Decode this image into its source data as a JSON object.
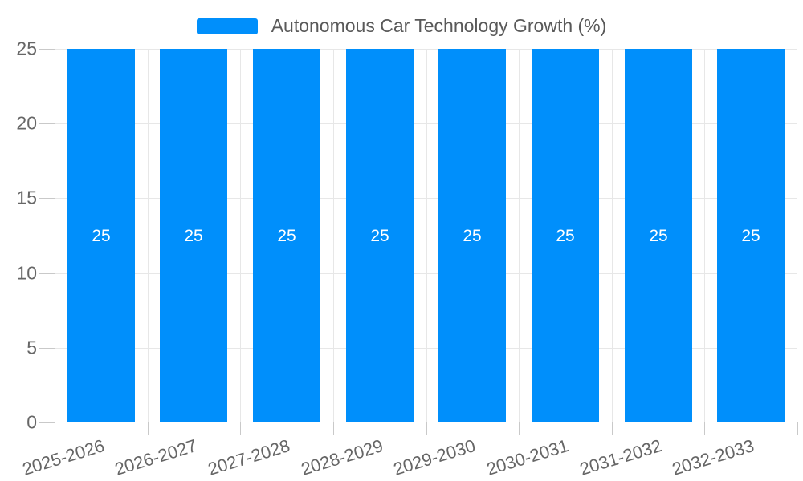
{
  "page": {
    "background": "#ffffff"
  },
  "legend": {
    "label": "Autonomous Car Technology Growth (%)"
  },
  "chart_data": {
    "type": "bar",
    "title": "Autonomous Car Technology Growth (%)",
    "categories": [
      "2025-2026",
      "2026-2027",
      "2027-2028",
      "2028-2029",
      "2029-2030",
      "2030-2031",
      "2031-2032",
      "2032-2033"
    ],
    "series": [
      {
        "name": "Autonomous Car Technology Growth (%)",
        "values": [
          25,
          25,
          25,
          25,
          25,
          25,
          25,
          25
        ]
      }
    ],
    "data_labels": [
      "25",
      "25",
      "25",
      "25",
      "25",
      "25",
      "25",
      "25"
    ],
    "xlabel": "",
    "ylabel": "",
    "ylim": [
      0,
      25
    ],
    "yticks": [
      0,
      5,
      10,
      15,
      20,
      25
    ],
    "grid": true,
    "legend_position": "top",
    "x_label_rotation_deg": -17,
    "colors": {
      "bar": "#008ffb",
      "data_label": "#ffffff",
      "gridline": "#e7e7e7",
      "axis_line": "#b0b0b0",
      "tick": "#c9c9c9",
      "axis_label_text": "#666666",
      "legend_text": "#595959"
    }
  }
}
